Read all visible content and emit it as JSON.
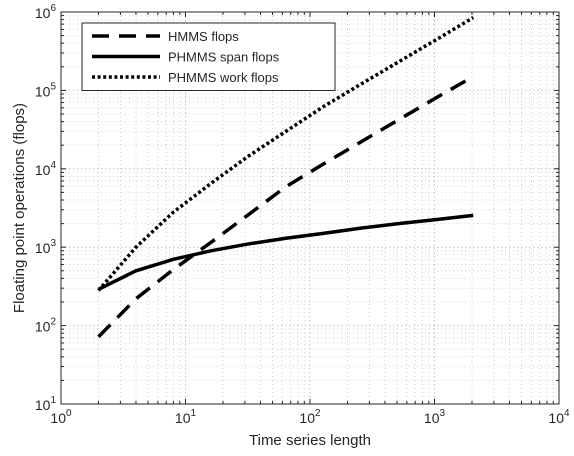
{
  "chart_data": {
    "type": "line",
    "xlabel": "Time series length",
    "ylabel": "Floating point operations (flops)",
    "xscale": "log",
    "yscale": "log",
    "xlim": [
      1,
      10000
    ],
    "ylim": [
      10,
      1000000
    ],
    "grid": "major and minor, dotted",
    "legend_position": "top-left",
    "x_ticks": [
      {
        "value": 1,
        "base": "10",
        "exp": "0"
      },
      {
        "value": 10,
        "base": "10",
        "exp": "1"
      },
      {
        "value": 100,
        "base": "10",
        "exp": "2"
      },
      {
        "value": 1000,
        "base": "10",
        "exp": "3"
      },
      {
        "value": 10000,
        "base": "10",
        "exp": "4"
      }
    ],
    "y_ticks": [
      {
        "value": 10,
        "base": "10",
        "exp": "1"
      },
      {
        "value": 100,
        "base": "10",
        "exp": "2"
      },
      {
        "value": 1000,
        "base": "10",
        "exp": "3"
      },
      {
        "value": 10000,
        "base": "10",
        "exp": "4"
      },
      {
        "value": 100000,
        "base": "10",
        "exp": "5"
      },
      {
        "value": 1000000,
        "base": "10",
        "exp": "6"
      }
    ],
    "series": [
      {
        "name": "HMMS flops",
        "line_style": "dashed",
        "color": "#000000",
        "x": [
          2,
          4,
          8,
          16,
          32,
          64,
          128,
          256,
          512,
          1024,
          2048
        ],
        "y": [
          72,
          220,
          520,
          1150,
          2600,
          5900,
          11500,
          22000,
          42000,
          80000,
          150000
        ]
      },
      {
        "name": "PHMMS span flops",
        "line_style": "solid",
        "color": "#000000",
        "x": [
          2,
          4,
          8,
          16,
          32,
          64,
          128,
          256,
          512,
          1024,
          2048
        ],
        "y": [
          290,
          500,
          700,
          900,
          1100,
          1300,
          1500,
          1750,
          2000,
          2250,
          2550
        ]
      },
      {
        "name": "PHMMS work flops",
        "line_style": "dotted",
        "color": "#000000",
        "x": [
          2,
          4,
          8,
          16,
          32,
          64,
          128,
          256,
          512,
          1024,
          2048
        ],
        "y": [
          280,
          1000,
          2800,
          6500,
          14500,
          30000,
          62000,
          120000,
          230000,
          440000,
          850000
        ]
      }
    ]
  }
}
